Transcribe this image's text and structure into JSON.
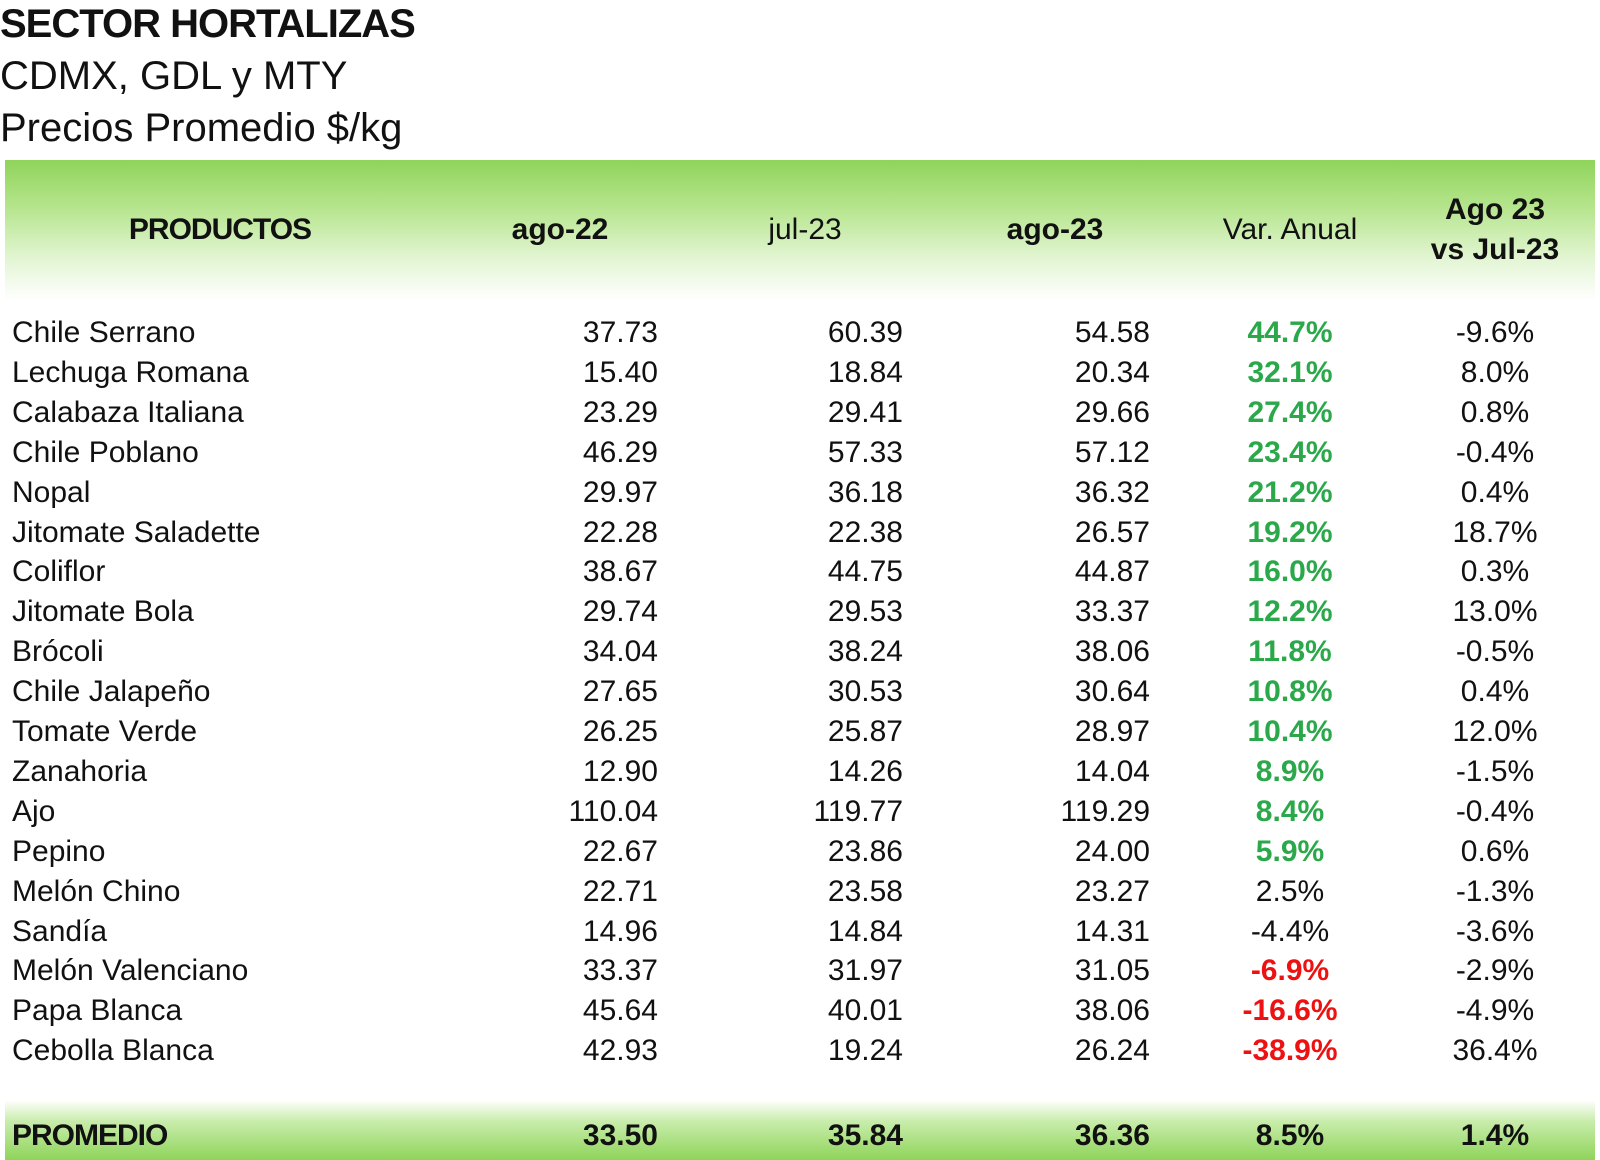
{
  "header": {
    "title": "SECTOR HORTALIZAS",
    "subtitle1": "CDMX, GDL y MTY",
    "subtitle2": "Precios Promedio $/kg"
  },
  "colors": {
    "header_green": "#8fd45a",
    "positive": "#2aa84a",
    "negative": "#ee1111"
  },
  "chart_data": {
    "type": "table",
    "columns": [
      "PRODUCTOS",
      "ago-22",
      "jul-23",
      "ago-23",
      "Var. Anual",
      "Ago 23 vs Jul-23"
    ],
    "column_labels": {
      "productos": "PRODUCTOS",
      "ago22": "ago-22",
      "jul23": "jul-23",
      "ago23": "ago-23",
      "var": "Var. Anual",
      "mom_line1": "Ago 23",
      "mom_line2": "vs Jul-23"
    },
    "rows": [
      {
        "product": "Chile Serrano",
        "ago22": "37.73",
        "jul23": "60.39",
        "ago23": "54.58",
        "var": "44.7%",
        "var_style": "pos",
        "mom": "-9.6%"
      },
      {
        "product": "Lechuga Romana",
        "ago22": "15.40",
        "jul23": "18.84",
        "ago23": "20.34",
        "var": "32.1%",
        "var_style": "pos",
        "mom": "8.0%"
      },
      {
        "product": "Calabaza Italiana",
        "ago22": "23.29",
        "jul23": "29.41",
        "ago23": "29.66",
        "var": "27.4%",
        "var_style": "pos",
        "mom": "0.8%"
      },
      {
        "product": "Chile Poblano",
        "ago22": "46.29",
        "jul23": "57.33",
        "ago23": "57.12",
        "var": "23.4%",
        "var_style": "pos",
        "mom": "-0.4%"
      },
      {
        "product": "Nopal",
        "ago22": "29.97",
        "jul23": "36.18",
        "ago23": "36.32",
        "var": "21.2%",
        "var_style": "pos",
        "mom": "0.4%"
      },
      {
        "product": "Jitomate Saladette",
        "ago22": "22.28",
        "jul23": "22.38",
        "ago23": "26.57",
        "var": "19.2%",
        "var_style": "pos",
        "mom": "18.7%"
      },
      {
        "product": "Coliflor",
        "ago22": "38.67",
        "jul23": "44.75",
        "ago23": "44.87",
        "var": "16.0%",
        "var_style": "pos",
        "mom": "0.3%"
      },
      {
        "product": "Jitomate Bola",
        "ago22": "29.74",
        "jul23": "29.53",
        "ago23": "33.37",
        "var": "12.2%",
        "var_style": "pos",
        "mom": "13.0%"
      },
      {
        "product": "Brócoli",
        "ago22": "34.04",
        "jul23": "38.24",
        "ago23": "38.06",
        "var": "11.8%",
        "var_style": "pos",
        "mom": "-0.5%"
      },
      {
        "product": "Chile Jalapeño",
        "ago22": "27.65",
        "jul23": "30.53",
        "ago23": "30.64",
        "var": "10.8%",
        "var_style": "pos",
        "mom": "0.4%"
      },
      {
        "product": "Tomate Verde",
        "ago22": "26.25",
        "jul23": "25.87",
        "ago23": "28.97",
        "var": "10.4%",
        "var_style": "pos",
        "mom": "12.0%"
      },
      {
        "product": "Zanahoria",
        "ago22": "12.90",
        "jul23": "14.26",
        "ago23": "14.04",
        "var": "8.9%",
        "var_style": "pos",
        "mom": "-1.5%"
      },
      {
        "product": "Ajo",
        "ago22": "110.04",
        "jul23": "119.77",
        "ago23": "119.29",
        "var": "8.4%",
        "var_style": "pos",
        "mom": "-0.4%"
      },
      {
        "product": "Pepino",
        "ago22": "22.67",
        "jul23": "23.86",
        "ago23": "24.00",
        "var": "5.9%",
        "var_style": "pos",
        "mom": "0.6%"
      },
      {
        "product": "Melón Chino",
        "ago22": "22.71",
        "jul23": "23.58",
        "ago23": "23.27",
        "var": "2.5%",
        "var_style": "neu",
        "mom": "-1.3%"
      },
      {
        "product": "Sandía",
        "ago22": "14.96",
        "jul23": "14.84",
        "ago23": "14.31",
        "var": "-4.4%",
        "var_style": "neu",
        "mom": "-3.6%"
      },
      {
        "product": "Melón Valenciano",
        "ago22": "33.37",
        "jul23": "31.97",
        "ago23": "31.05",
        "var": "-6.9%",
        "var_style": "neg",
        "mom": "-2.9%"
      },
      {
        "product": "Papa Blanca",
        "ago22": "45.64",
        "jul23": "40.01",
        "ago23": "38.06",
        "var": "-16.6%",
        "var_style": "neg",
        "mom": "-4.9%"
      },
      {
        "product": "Cebolla Blanca",
        "ago22": "42.93",
        "jul23": "19.24",
        "ago23": "26.24",
        "var": "-38.9%",
        "var_style": "neg",
        "mom": "36.4%"
      }
    ],
    "footer": {
      "product": "PROMEDIO",
      "ago22": "33.50",
      "jul23": "35.84",
      "ago23": "36.36",
      "var": "8.5%",
      "mom": "1.4%"
    }
  }
}
